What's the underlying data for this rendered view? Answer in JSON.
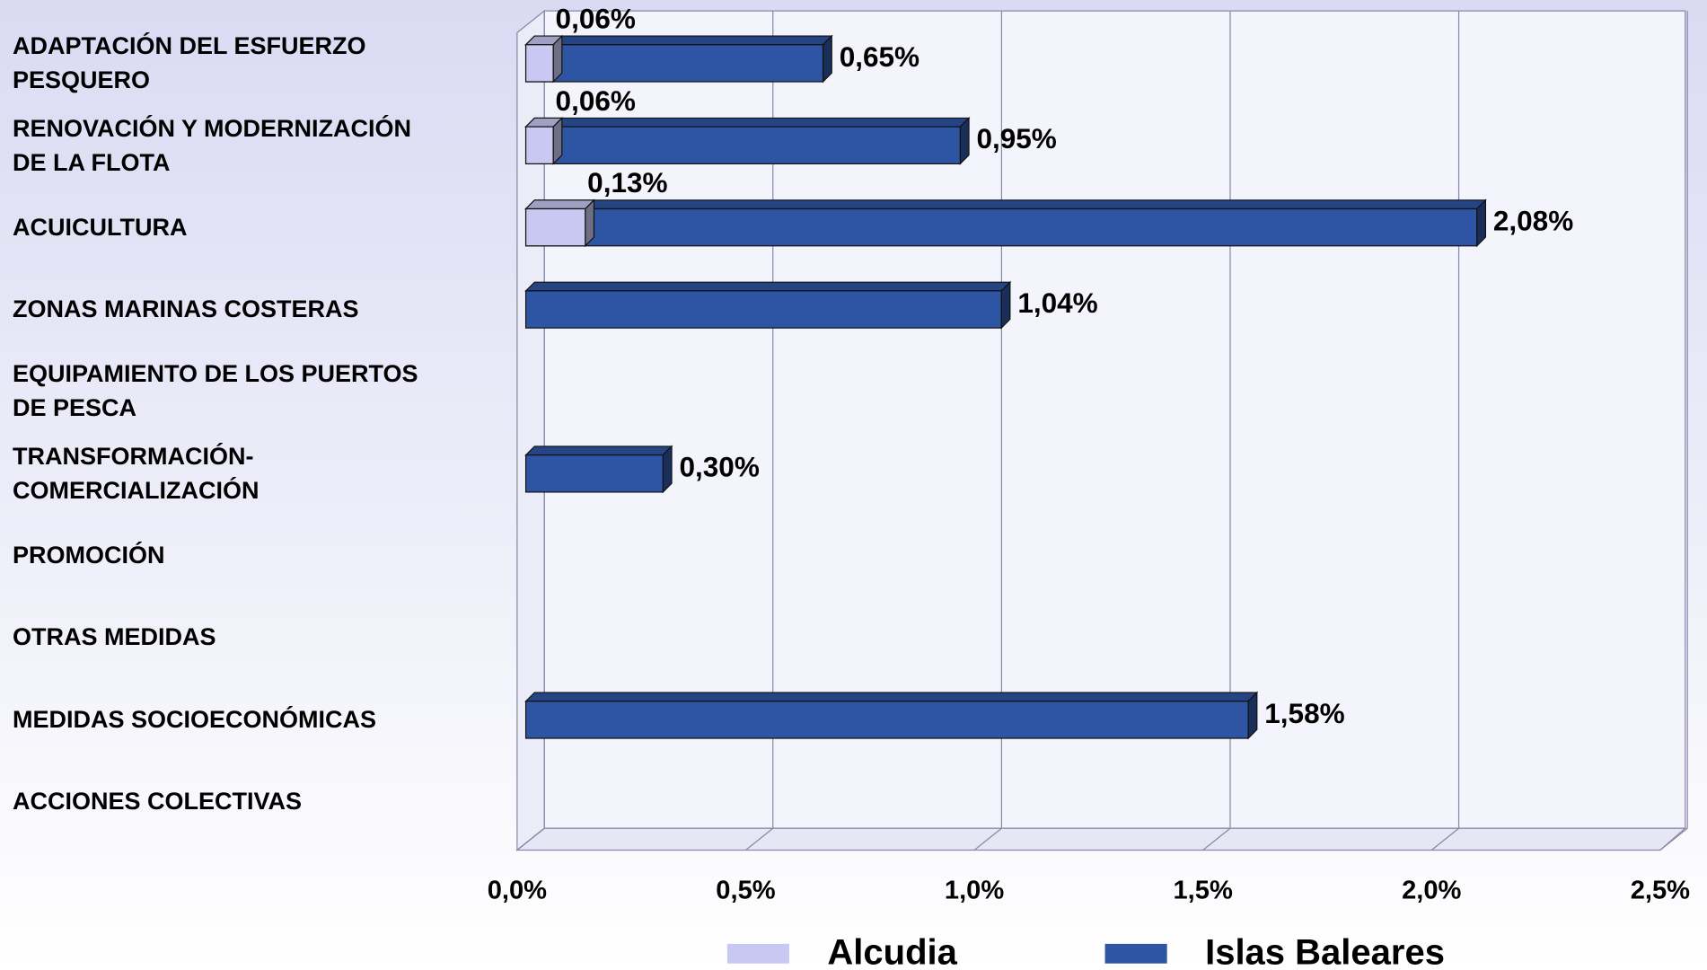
{
  "chart_data": {
    "type": "bar",
    "orientation": "horizontal",
    "categories": [
      "ADAPTACIÓN DEL ESFUERZO PESQUERO",
      "RENOVACIÓN Y MODERNIZACIÓN DE LA FLOTA",
      "ACUICULTURA",
      "ZONAS MARINAS COSTERAS",
      "EQUIPAMIENTO DE LOS PUERTOS DE PESCA",
      "TRANSFORMACIÓN-COMERCIALIZACIÓN",
      "PROMOCIÓN",
      "OTRAS MEDIDAS",
      "MEDIDAS SOCIOECONÓMICAS",
      "ACCIONES COLECTIVAS"
    ],
    "series": [
      {
        "name": "Islas Baleares",
        "color": "#2e55a4",
        "values": [
          0.65,
          0.95,
          2.08,
          1.04,
          null,
          0.3,
          null,
          null,
          1.58,
          null
        ],
        "value_labels": [
          "0,65%",
          "0,95%",
          "2,08%",
          "1,04%",
          null,
          "0,30%",
          null,
          null,
          "1,58%",
          null
        ]
      },
      {
        "name": "Alcudia",
        "color": "#c8c8f2",
        "values": [
          0.06,
          0.06,
          0.13,
          null,
          null,
          null,
          null,
          null,
          null,
          null
        ],
        "value_labels": [
          "0,06%",
          "0,06%",
          "0,13%",
          null,
          null,
          null,
          null,
          null,
          null,
          null
        ]
      }
    ],
    "legend_order": [
      1,
      0
    ],
    "xlim": [
      0,
      2.5
    ],
    "xticks": [
      {
        "value": 0,
        "label": "0,0%"
      },
      {
        "value": 0.5,
        "label": "0,5%"
      },
      {
        "value": 1.0,
        "label": "1,0%"
      },
      {
        "value": 1.5,
        "label": "1,5%"
      },
      {
        "value": 2.0,
        "label": "2,0%"
      },
      {
        "value": 2.5,
        "label": "2,5%"
      }
    ],
    "grid": true
  }
}
